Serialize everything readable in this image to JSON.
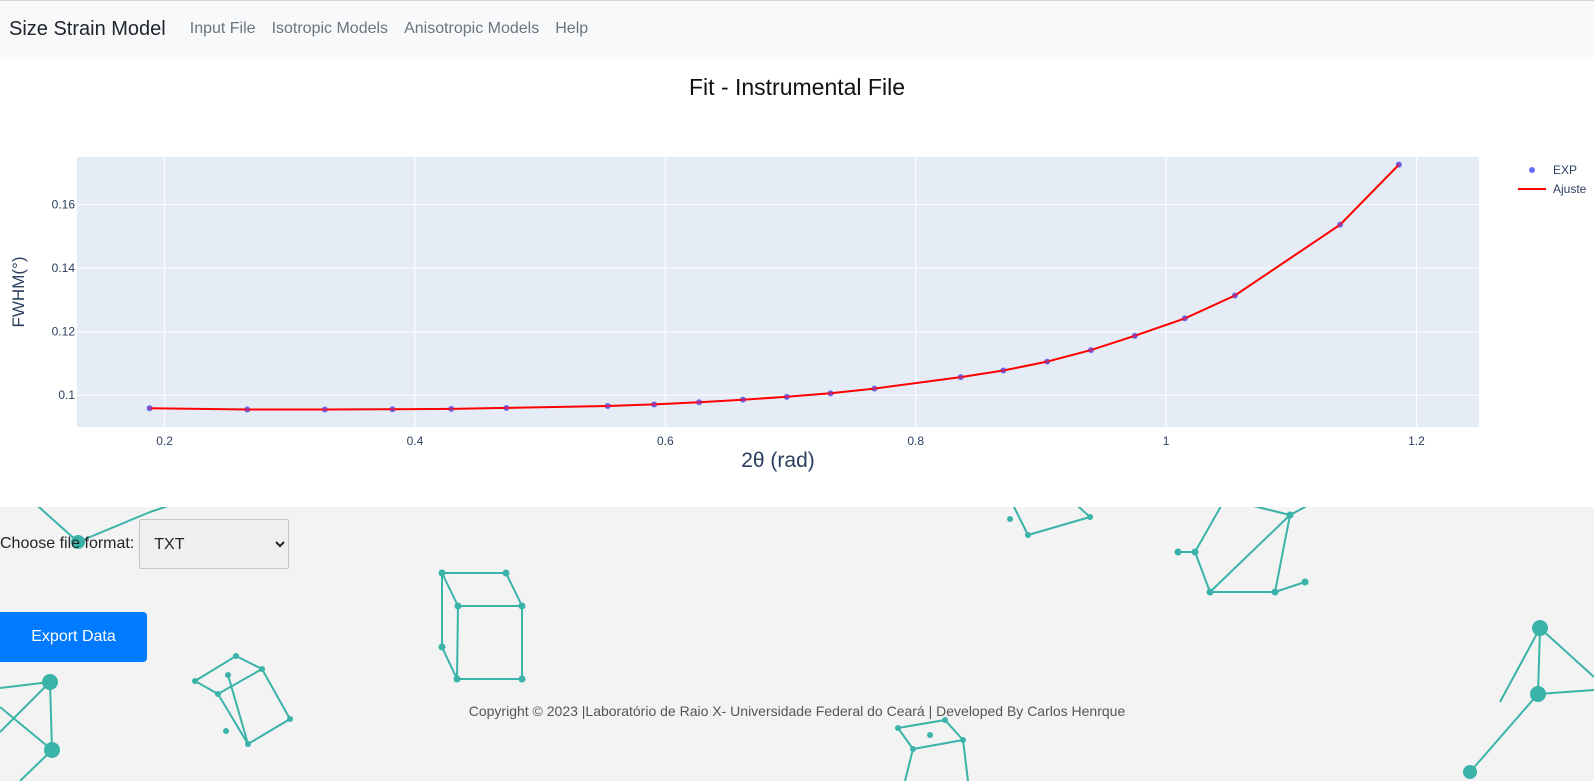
{
  "nav": {
    "brand": "Size Strain Model",
    "links": [
      "Input File",
      "Isotropic Models",
      "Anisotropic Models",
      "Help"
    ]
  },
  "chart_data": {
    "type": "scatter+line",
    "title": "Fit - Instrumental File",
    "xlabel": "2θ (rad)",
    "ylabel": "FWHM(°)",
    "xlim": [
      0.13,
      1.25
    ],
    "ylim": [
      0.09,
      0.175
    ],
    "xticks": [
      0.2,
      0.4,
      0.6,
      0.8,
      1,
      1.2
    ],
    "xtick_labels": [
      "0.2",
      "0.4",
      "0.6",
      "0.8",
      "1",
      "1.2"
    ],
    "yticks": [
      0.1,
      0.12,
      0.14,
      0.16
    ],
    "ytick_labels": [
      "0.1",
      "0.12",
      "0.14",
      "0.16"
    ],
    "grid": true,
    "legend_position": "top-right",
    "series": [
      {
        "name": "EXP",
        "mode": "markers",
        "color": "#636efa",
        "x": [
          0.188,
          0.266,
          0.328,
          0.382,
          0.429,
          0.473,
          0.554,
          0.591,
          0.627,
          0.662,
          0.697,
          0.732,
          0.767,
          0.836,
          0.87,
          0.905,
          0.94,
          0.975,
          1.015,
          1.055,
          1.139,
          1.186
        ],
        "y": [
          0.0959,
          0.0955,
          0.0955,
          0.0956,
          0.0957,
          0.096,
          0.0966,
          0.0971,
          0.0978,
          0.0986,
          0.0995,
          0.1006,
          0.1021,
          0.1057,
          0.1078,
          0.1106,
          0.1142,
          0.1187,
          0.1242,
          0.1314,
          0.1537,
          0.1726
        ]
      },
      {
        "name": "Ajuste",
        "mode": "lines",
        "color": "#ff0000",
        "x": [
          0.188,
          0.266,
          0.328,
          0.382,
          0.429,
          0.473,
          0.554,
          0.591,
          0.627,
          0.662,
          0.697,
          0.732,
          0.767,
          0.836,
          0.87,
          0.905,
          0.94,
          0.975,
          1.015,
          1.055,
          1.139,
          1.186
        ],
        "y": [
          0.0959,
          0.0955,
          0.0955,
          0.0956,
          0.0957,
          0.096,
          0.0966,
          0.0971,
          0.0978,
          0.0986,
          0.0995,
          0.1006,
          0.1021,
          0.1057,
          0.1078,
          0.1106,
          0.1142,
          0.1187,
          0.1242,
          0.1314,
          0.1537,
          0.1726
        ]
      }
    ]
  },
  "export": {
    "format_label": "Choose file format:",
    "format_selected": "TXT",
    "button_label": "Export Data"
  },
  "footer": {
    "text": "Copyright © 2023 |Laboratório de Raio X- Universidade Federal do Ceará | Developed By Carlos Henrque"
  },
  "colors": {
    "accent": "#007bff",
    "plot_bg": "#e5ecf6",
    "molecule": "#3ab3a8"
  },
  "decoration": {
    "background": "teal molecular-lattice line drawings"
  }
}
